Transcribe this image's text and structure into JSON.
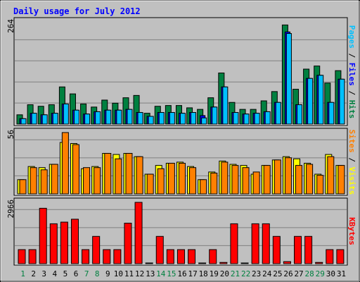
{
  "chart_data": {
    "type": "bar",
    "title": "Daily usage for July 2012",
    "categories": [
      "1",
      "2",
      "3",
      "4",
      "5",
      "6",
      "7",
      "8",
      "9",
      "10",
      "11",
      "12",
      "13",
      "14",
      "15",
      "16",
      "17",
      "18",
      "19",
      "20",
      "21",
      "22",
      "23",
      "24",
      "25",
      "26",
      "27",
      "28",
      "29",
      "30",
      "31"
    ],
    "weekend_days": [
      1,
      7,
      8,
      14,
      15,
      21,
      22,
      28,
      29
    ],
    "panels": [
      {
        "id": "hits-files-pages",
        "ymax_label": "264",
        "ymax": 264,
        "ylabel_parts": [
          {
            "text": "Pages",
            "color": "#00C0FF"
          },
          {
            "text": " / ",
            "color": "#000000"
          },
          {
            "text": "Files",
            "color": "#0000FF"
          },
          {
            "text": " / ",
            "color": "#000000"
          },
          {
            "text": "Hits",
            "color": "#008040"
          }
        ],
        "series": [
          {
            "name": "Hits",
            "color": "#008040",
            "values": [
              24,
              50,
              46,
              50,
              96,
              78,
              52,
              44,
              62,
              54,
              68,
              74,
              28,
              46,
              48,
              48,
              42,
              38,
              68,
              132,
              56,
              38,
              38,
              60,
              84,
              256,
              90,
              142,
              150,
              106,
              138
            ]
          },
          {
            "name": "Files",
            "color": "#0000FF",
            "values": [
              14,
              28,
              24,
              28,
              52,
              36,
              26,
              32,
              36,
              36,
              38,
              30,
              20,
              30,
              30,
              28,
              30,
              22,
              44,
              96,
              30,
              26,
              28,
              32,
              56,
              238,
              50,
              118,
              126,
              56,
              116
            ]
          },
          {
            "name": "Pages",
            "color": "#00C0FF",
            "values": [
              14,
              28,
              24,
              28,
              52,
              36,
              26,
              32,
              36,
              36,
              38,
              30,
              20,
              30,
              30,
              28,
              30,
              16,
              44,
              96,
              30,
              26,
              28,
              32,
              56,
              234,
              50,
              118,
              126,
              56,
              116
            ]
          }
        ]
      },
      {
        "id": "visits-sites",
        "ymax_label": "56",
        "ymax": 56,
        "ylabel_parts": [
          {
            "text": "Sites",
            "color": "#FF8000"
          },
          {
            "text": " / ",
            "color": "#000000"
          },
          {
            "text": "Visits",
            "color": "#FFFF00"
          }
        ],
        "series": [
          {
            "name": "Visits",
            "color": "#FFFF00",
            "values": [
              13,
              25,
              24,
              27,
              47,
              46,
              23,
              25,
              37,
              36,
              37,
              34,
              18,
              26,
              28,
              29,
              25,
              13,
              20,
              30,
              27,
              26,
              18,
              26,
              31,
              34,
              32,
              28,
              18,
              36,
              26
            ]
          },
          {
            "name": "Sites",
            "color": "#FF8000",
            "values": [
              13,
              24,
              22,
              27,
              56,
              45,
              24,
              24,
              37,
              32,
              37,
              34,
              18,
              23,
              28,
              28,
              24,
              13,
              19,
              29,
              26,
              24,
              20,
              26,
              31,
              33,
              26,
              27,
              17,
              34,
              26
            ]
          }
        ]
      },
      {
        "id": "kbytes",
        "ymax_label": "2966",
        "ymax": 2966,
        "ylabel_parts": [
          {
            "text": "KBytes",
            "color": "#FF0000"
          }
        ],
        "series": [
          {
            "name": "KBytes",
            "color": "#FF0000",
            "values": [
              680,
              680,
              2680,
              1930,
              2010,
              2150,
              680,
              1320,
              680,
              680,
              1960,
              2966,
              0,
              1320,
              680,
              680,
              680,
              0,
              680,
              60,
              1930,
              0,
              1930,
              1930,
              1320,
              100,
              1320,
              1320,
              60,
              680,
              680
            ]
          }
        ]
      }
    ]
  }
}
